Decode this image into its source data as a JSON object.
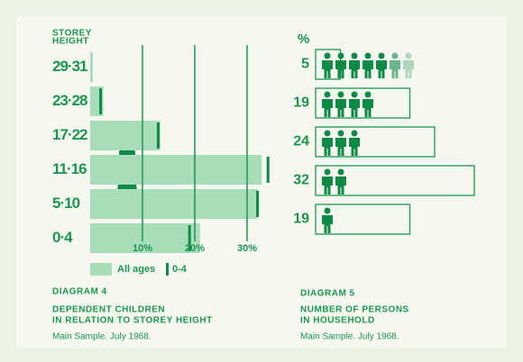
{
  "chart_data": [
    {
      "type": "bar",
      "y_label": [
        "STOREY",
        "HEIGHT"
      ],
      "categories": [
        "29·31",
        "23·28",
        "17·22",
        "11·16",
        "5·10",
        "0·4"
      ],
      "series": [
        {
          "name": "All ages",
          "color": "#a9dcb9",
          "values": [
            0.5,
            2.5,
            13.4,
            32.8,
            32,
            21
          ]
        },
        {
          "name": "0-4",
          "color": "#0e8a47",
          "values": [
            null,
            2,
            13,
            34,
            32,
            19
          ]
        }
      ],
      "xlim": [
        0,
        35
      ],
      "xticks": [
        {
          "value": 10,
          "label": "10%"
        },
        {
          "value": 20,
          "label": "20%"
        },
        {
          "value": 30,
          "label": "30%"
        }
      ],
      "grid": true,
      "title": "DIAGRAM 4",
      "subtitle": [
        "DEPENDENT CHILDREN",
        "IN RELATION TO STOREY HEIGHT"
      ],
      "note": "Main Sample.  July 1968."
    },
    {
      "type": "icon-bar",
      "unit": "%",
      "persons": [
        7,
        4,
        3,
        2,
        1
      ],
      "values": [
        5,
        19,
        24,
        32,
        19
      ],
      "color": "#0e8a47",
      "title": "DIAGRAM 5",
      "subtitle": [
        "NUMBER OF PERSONS",
        "IN HOUSEHOLD"
      ],
      "note": "Main Sample.  July 1968."
    }
  ]
}
